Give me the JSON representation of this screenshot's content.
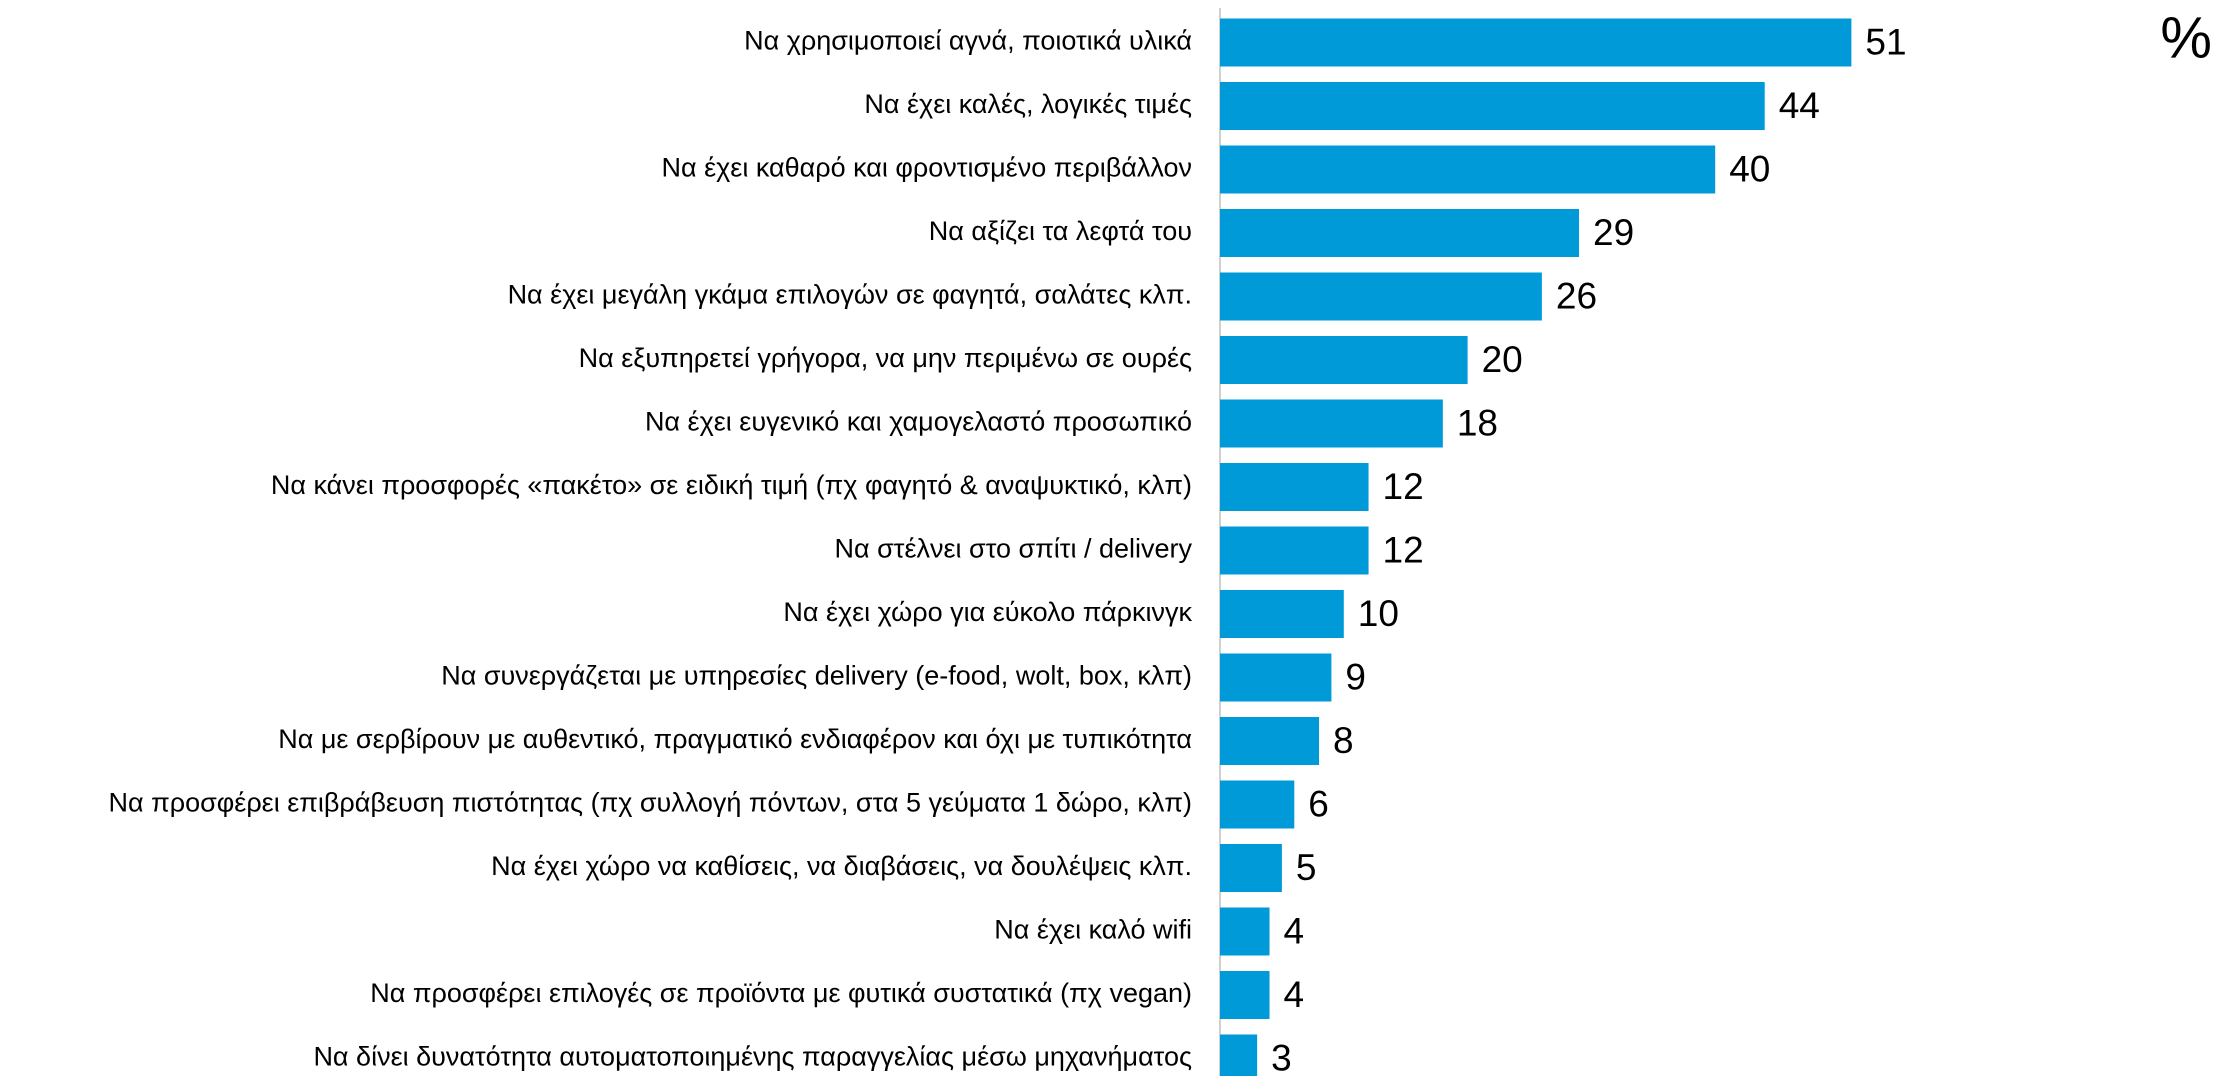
{
  "chart_data": {
    "type": "hbar",
    "annotation": "%",
    "color": "#009ad9",
    "categories": [
      "Να χρησιμοποιεί αγνά, ποιοτικά υλικά",
      "Να έχει καλές, λογικές τιμές",
      "Να έχει καθαρό και φροντισμένο περιβάλλον",
      "Να αξίζει τα λεφτά του",
      "Να έχει μεγάλη γκάμα επιλογών σε φαγητά, σαλάτες κλπ.",
      "Να εξυπηρετεί γρήγορα, να μην περιμένω σε ουρές",
      "Να έχει ευγενικό και χαμογελαστό  προσωπικό",
      "Να κάνει προσφορές «πακέτο» σε ειδική τιμή (πχ φαγητό & αναψυκτικό, κλπ)",
      "Να στέλνει στο σπίτι / delivery",
      "Να έχει χώρο για εύκολο πάρκινγκ",
      "Να συνεργάζεται με υπηρεσίες delivery (e-food, wolt, box, κλπ)",
      "Να με σερβίρουν με αυθεντικό, πραγματικό ενδιαφέρον και όχι με τυπικότητα",
      "Να προσφέρει επιβράβευση πιστότητας (πχ συλλογή πόντων, στα 5 γεύματα 1 δώρο, κλπ)",
      "Να έχει χώρο να καθίσεις, να διαβάσεις, να δουλέψεις κλπ.",
      "Να έχει καλό wifi",
      "Να προσφέρει επιλογές σε προϊόντα με φυτικά συστατικά (πχ vegan)",
      "Να δίνει δυνατότητα αυτοματοποιημένης παραγγελίας μέσω μηχανήματος"
    ],
    "values": [
      51,
      44,
      40,
      29,
      26,
      20,
      18,
      12,
      12,
      10,
      9,
      8,
      6,
      5,
      4,
      4,
      3
    ]
  }
}
